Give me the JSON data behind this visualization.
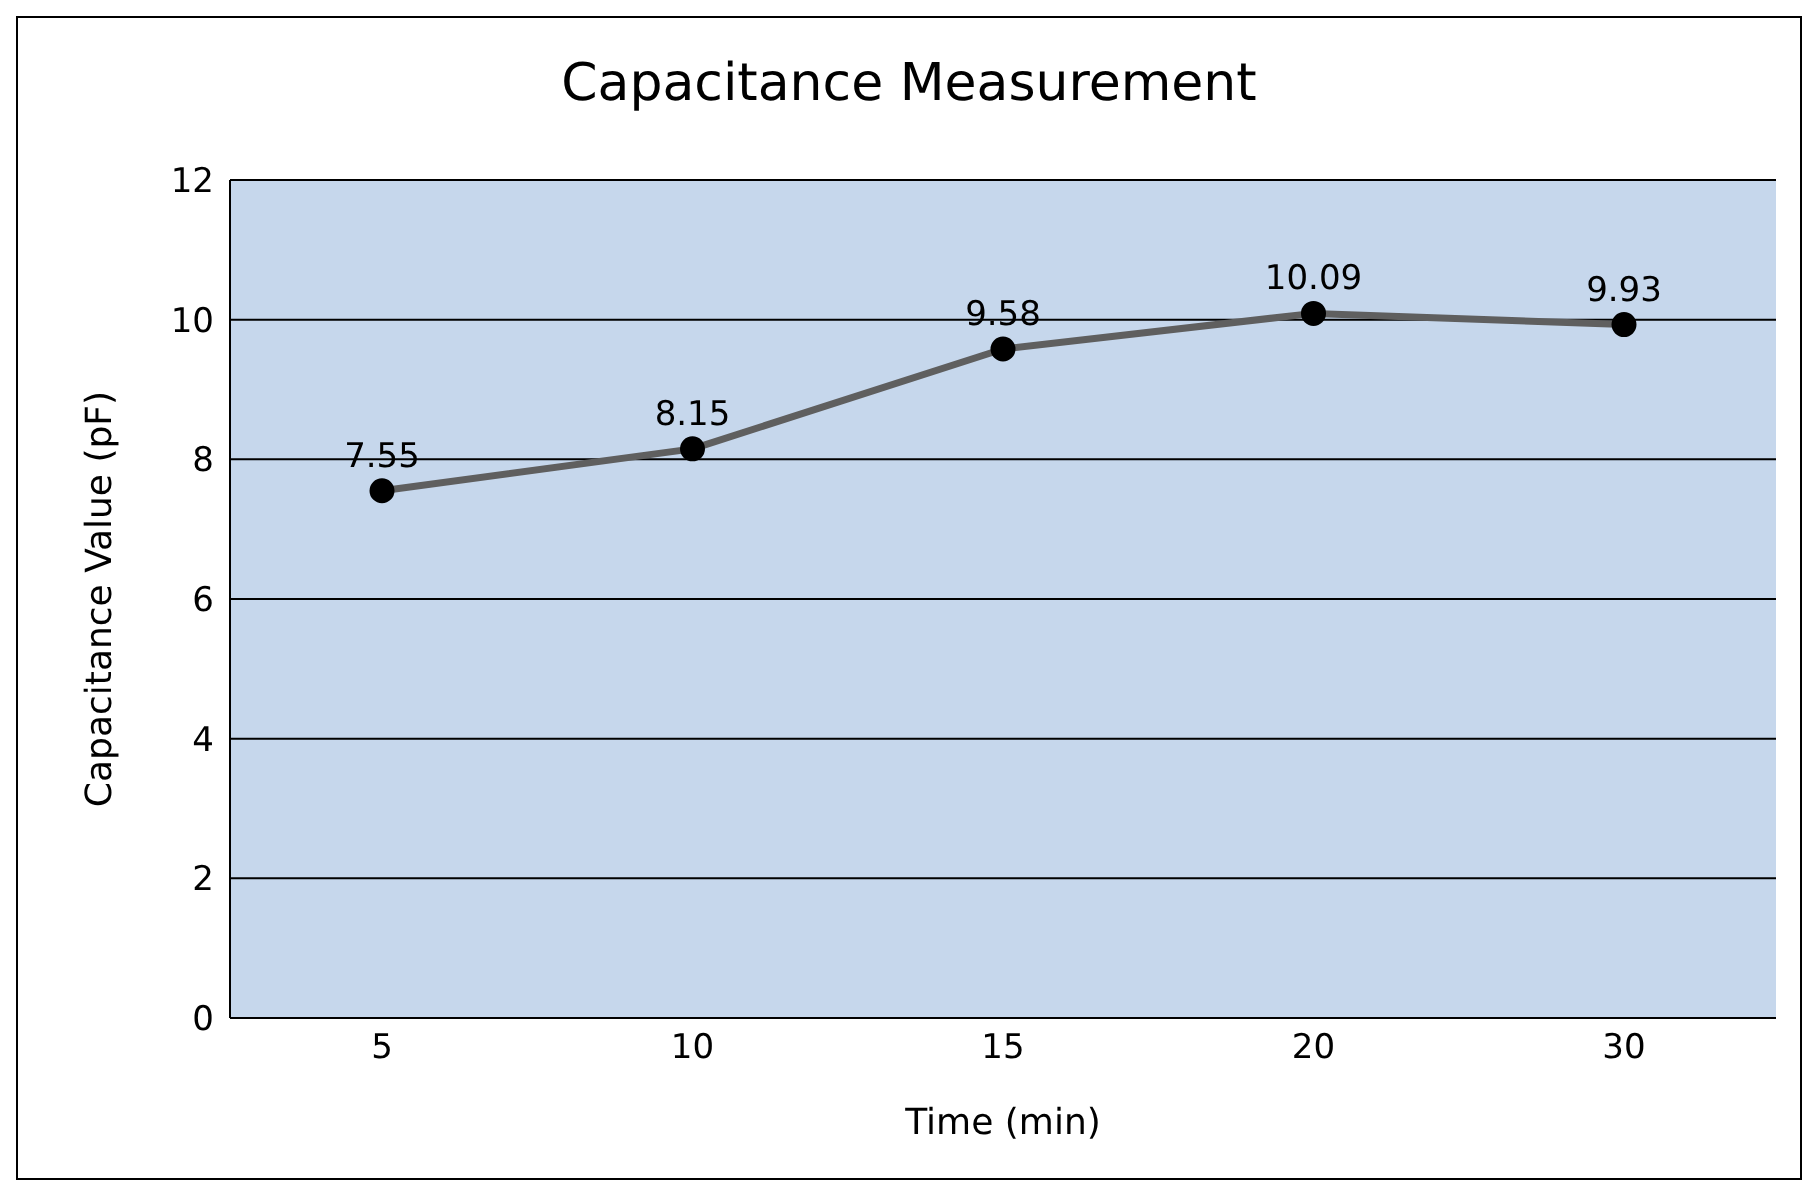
{
  "chart_data": {
    "type": "line",
    "title": "Capacitance Measurement",
    "xlabel": "Time (min)",
    "ylabel": "Capacitance Value (pF)",
    "categories": [
      "5",
      "10",
      "15",
      "20",
      "30"
    ],
    "series": [
      {
        "color": "#5f5f5f",
        "values": [
          7.55,
          8.15,
          9.58,
          10.09,
          9.93
        ]
      }
    ],
    "ylim": [
      0,
      12
    ],
    "yticks": [
      0,
      2,
      4,
      6,
      8,
      10,
      12
    ],
    "grid": "y",
    "marker": "circle",
    "line_style": "solid",
    "data_labels": true
  }
}
